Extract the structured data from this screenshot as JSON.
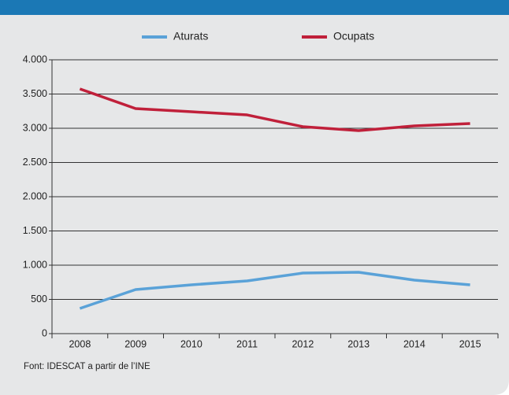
{
  "chart_data": {
    "type": "line",
    "categories": [
      "2008",
      "2009",
      "2010",
      "2011",
      "2012",
      "2013",
      "2014",
      "2015"
    ],
    "series": [
      {
        "name": "Aturats",
        "color": "#5aa2d8",
        "values": [
          368,
          644,
          713,
          770,
          885,
          897,
          782,
          713
        ]
      },
      {
        "name": "Ocupats",
        "color": "#c0203a",
        "values": [
          3575,
          3287,
          3241,
          3195,
          3023,
          2966,
          3034,
          3069
        ]
      }
    ],
    "ylim": [
      0,
      4000
    ],
    "yticks": [
      0,
      500,
      {
        "value": 1000,
        "label": "1.000"
      },
      {
        "value": 1500,
        "label": "1.500"
      },
      {
        "value": 2000,
        "label": "2.000"
      },
      {
        "value": 2500,
        "label": "2.500"
      },
      {
        "value": 3000,
        "label": "3.000"
      },
      {
        "value": 3500,
        "label": "3.500"
      },
      {
        "value": 4000,
        "label": "4.000"
      }
    ],
    "grid": true,
    "legend": "top",
    "source": "Font: IDESCAT a partir de l’INE"
  }
}
